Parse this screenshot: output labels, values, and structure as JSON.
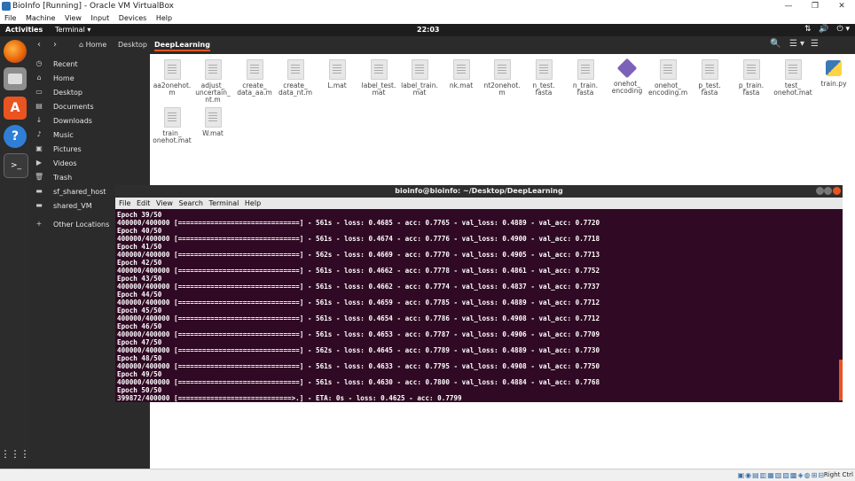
{
  "vbox": {
    "title": "BioInfo [Running] - Oracle VM VirtualBox",
    "menu": [
      "File",
      "Machine",
      "View",
      "Input",
      "Devices",
      "Help"
    ],
    "win_minimize": "—",
    "win_restore": "❐",
    "win_close": "✕"
  },
  "topbar": {
    "activities": "Activities",
    "app_menu": "Terminal ▾",
    "clock": "22:03",
    "tray_network": "⇅",
    "tray_volume": "🔊",
    "tray_power": "⏻ ▾"
  },
  "dock": {
    "items": [
      "firefox-icon",
      "files-icon",
      "software-icon",
      "help-icon",
      "terminal-icon"
    ],
    "apps_grid": "⋮⋮⋮"
  },
  "files": {
    "back": "‹",
    "forward": "›",
    "breadcrumbs": [
      "Home",
      "Desktop",
      "DeepLearning"
    ],
    "controls": {
      "search": "🔍",
      "view_list": "☰",
      "view_menu": "▾",
      "menu": "☰"
    },
    "sidebar": [
      {
        "icon": "clock-icon",
        "glyph": "◷",
        "label": "Recent"
      },
      {
        "icon": "home-icon",
        "glyph": "⌂",
        "label": "Home"
      },
      {
        "icon": "desktop-icon",
        "glyph": "▭",
        "label": "Desktop"
      },
      {
        "icon": "documents-icon",
        "glyph": "▤",
        "label": "Documents"
      },
      {
        "icon": "downloads-icon",
        "glyph": "↓",
        "label": "Downloads"
      },
      {
        "icon": "music-icon",
        "glyph": "♪",
        "label": "Music"
      },
      {
        "icon": "pictures-icon",
        "glyph": "▣",
        "label": "Pictures"
      },
      {
        "icon": "videos-icon",
        "glyph": "▶",
        "label": "Videos"
      },
      {
        "icon": "trash-icon",
        "glyph": "🗑",
        "label": "Trash"
      },
      {
        "icon": "drive-icon",
        "glyph": "▬",
        "label": "sf_shared_host"
      },
      {
        "icon": "drive-icon",
        "glyph": "▬",
        "label": "shared_VM"
      },
      {
        "icon": "plus-icon",
        "glyph": "+",
        "label": "Other Locations"
      }
    ],
    "files": [
      {
        "name": "aa2onehot.\nm",
        "kind": "doc"
      },
      {
        "name": "adjust_\nuncertain_\nnt.m",
        "kind": "doc"
      },
      {
        "name": "create_\ndata_aa.m",
        "kind": "doc"
      },
      {
        "name": "create_\ndata_nt.m",
        "kind": "doc"
      },
      {
        "name": "L.mat",
        "kind": "doc"
      },
      {
        "name": "label_test.\nmat",
        "kind": "doc"
      },
      {
        "name": "label_train.\nmat",
        "kind": "doc"
      },
      {
        "name": "nk.mat",
        "kind": "doc"
      },
      {
        "name": "nt2onehot.\nm",
        "kind": "doc"
      },
      {
        "name": "n_test.\nfasta",
        "kind": "doc"
      },
      {
        "name": "n_train.\nfasta",
        "kind": "doc"
      },
      {
        "name": "onehot_\nencoding",
        "kind": "diamond"
      },
      {
        "name": "onehot_\nencoding.m",
        "kind": "doc"
      },
      {
        "name": "p_test.\nfasta",
        "kind": "doc"
      },
      {
        "name": "p_train.\nfasta",
        "kind": "doc"
      },
      {
        "name": "test_\nonehot.mat",
        "kind": "doc"
      },
      {
        "name": "train.py",
        "kind": "py"
      },
      {
        "name": "train_\nonehot.mat",
        "kind": "doc"
      },
      {
        "name": "W.mat",
        "kind": "doc"
      }
    ]
  },
  "terminal": {
    "title": "bioinfo@bioinfo: ~/Desktop/DeepLearning",
    "menu": [
      "File",
      "Edit",
      "View",
      "Search",
      "Terminal",
      "Help"
    ],
    "lines": [
      "Epoch 39/50",
      "400000/400000 [==============================] - 561s - loss: 0.4685 - acc: 0.7765 - val_loss: 0.4889 - val_acc: 0.7720",
      "Epoch 40/50",
      "400000/400000 [==============================] - 561s - loss: 0.4674 - acc: 0.7776 - val_loss: 0.4900 - val_acc: 0.7718",
      "Epoch 41/50",
      "400000/400000 [==============================] - 562s - loss: 0.4669 - acc: 0.7770 - val_loss: 0.4905 - val_acc: 0.7713",
      "Epoch 42/50",
      "400000/400000 [==============================] - 561s - loss: 0.4662 - acc: 0.7778 - val_loss: 0.4861 - val_acc: 0.7752",
      "Epoch 43/50",
      "400000/400000 [==============================] - 561s - loss: 0.4662 - acc: 0.7774 - val_loss: 0.4837 - val_acc: 0.7737",
      "Epoch 44/50",
      "400000/400000 [==============================] - 561s - loss: 0.4659 - acc: 0.7785 - val_loss: 0.4889 - val_acc: 0.7712",
      "Epoch 45/50",
      "400000/400000 [==============================] - 561s - loss: 0.4654 - acc: 0.7786 - val_loss: 0.4908 - val_acc: 0.7712",
      "Epoch 46/50",
      "400000/400000 [==============================] - 561s - loss: 0.4653 - acc: 0.7787 - val_loss: 0.4906 - val_acc: 0.7709",
      "Epoch 47/50",
      "400000/400000 [==============================] - 562s - loss: 0.4645 - acc: 0.7789 - val_loss: 0.4889 - val_acc: 0.7730",
      "Epoch 48/50",
      "400000/400000 [==============================] - 561s - loss: 0.4633 - acc: 0.7795 - val_loss: 0.4908 - val_acc: 0.7750",
      "Epoch 49/50",
      "400000/400000 [==============================] - 561s - loss: 0.4630 - acc: 0.7800 - val_loss: 0.4884 - val_acc: 0.7768",
      "Epoch 50/50",
      "399872/400000 [============================>.] - ETA: 0s - loss: 0.4625 - acc: 0.7799"
    ]
  },
  "host_status": {
    "icons": "▣◉▤▥▦▧▨▩◈◍⊞⊟",
    "right_ctrl": "Right Ctrl"
  }
}
